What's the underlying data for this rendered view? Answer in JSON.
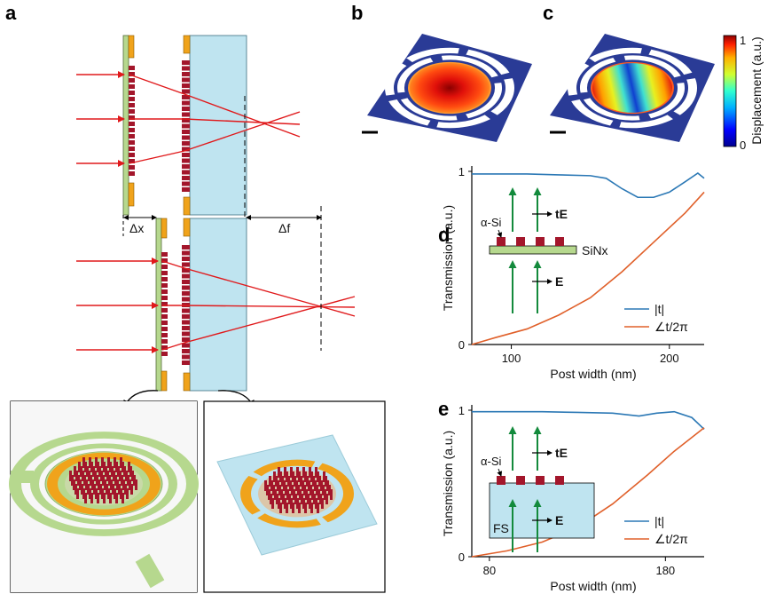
{
  "panels": {
    "a": "a",
    "b": "b",
    "c": "c",
    "d": "d",
    "e": "e"
  },
  "panel_a": {
    "dx_label": "Δx",
    "df_label": "Δf"
  },
  "colorbar": {
    "max": "1",
    "min": "0",
    "label": "Displacement (a.u.)",
    "colormap": "jet"
  },
  "colors": {
    "ray": "#e0191b",
    "post": "#a3162b",
    "gold": "#f0a31b",
    "membrane": "#b6d88e",
    "substrate": "#bfe4f0",
    "arrow": "#138a3c",
    "mag_line": "#2b78b5",
    "phase_line": "#e0602a"
  },
  "chart_data": [
    {
      "panel": "d",
      "type": "line",
      "xlabel": "Post width (nm)",
      "ylabel": "Transmission (a.u.)",
      "xlim": [
        75,
        222
      ],
      "ylim": [
        0,
        1
      ],
      "xticks": [
        100,
        200
      ],
      "yticks": [
        0,
        1
      ],
      "inset": {
        "post_label": "α-Si",
        "out_label": "tE",
        "substrate_label": "SiNx",
        "in_label": "E"
      },
      "series": [
        {
          "name": "|t|",
          "color": "#2b78b5",
          "x": [
            75,
            90,
            110,
            130,
            150,
            160,
            170,
            180,
            190,
            200,
            210,
            218,
            222
          ],
          "y": [
            0.985,
            0.985,
            0.985,
            0.98,
            0.975,
            0.96,
            0.9,
            0.85,
            0.85,
            0.88,
            0.94,
            0.99,
            0.96
          ]
        },
        {
          "name": "∠t/2π",
          "color": "#e0602a",
          "x": [
            75,
            90,
            110,
            130,
            150,
            170,
            190,
            210,
            222
          ],
          "y": [
            0.0,
            0.04,
            0.09,
            0.17,
            0.27,
            0.42,
            0.59,
            0.76,
            0.88
          ]
        }
      ]
    },
    {
      "panel": "e",
      "type": "line",
      "xlabel": "Post width (nm)",
      "ylabel": "Transmission (a.u.)",
      "xlim": [
        70,
        202
      ],
      "ylim": [
        0,
        1
      ],
      "xticks": [
        80,
        180
      ],
      "yticks": [
        0,
        1
      ],
      "inset": {
        "post_label": "α-Si",
        "out_label": "tE",
        "substrate_label": "FS",
        "in_label": "E"
      },
      "series": [
        {
          "name": "|t|",
          "color": "#2b78b5",
          "x": [
            70,
            90,
            110,
            130,
            150,
            165,
            175,
            185,
            195,
            202
          ],
          "y": [
            0.99,
            0.99,
            0.99,
            0.985,
            0.98,
            0.96,
            0.98,
            0.99,
            0.95,
            0.87
          ]
        },
        {
          "name": "∠t/2π",
          "color": "#e0602a",
          "x": [
            70,
            90,
            110,
            130,
            150,
            170,
            185,
            202
          ],
          "y": [
            0.0,
            0.04,
            0.1,
            0.2,
            0.36,
            0.56,
            0.72,
            0.88
          ]
        }
      ]
    }
  ]
}
